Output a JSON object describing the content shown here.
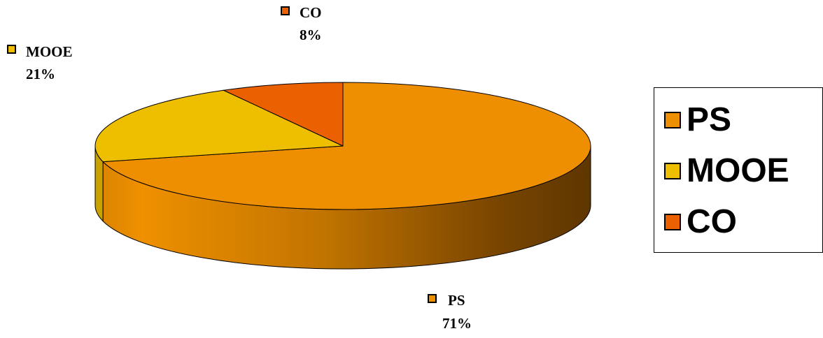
{
  "chart_data": {
    "type": "pie",
    "title": "",
    "categories": [
      "PS",
      "MOOE",
      "CO"
    ],
    "values": [
      71,
      21,
      8
    ],
    "value_labels": [
      "71%",
      "21%",
      "8%"
    ],
    "colors": [
      "#ED8F00",
      "#EDBF00",
      "#EB6000"
    ],
    "three_d": true,
    "legend_position": "right",
    "legend": [
      "PS",
      "MOOE",
      "CO"
    ]
  }
}
